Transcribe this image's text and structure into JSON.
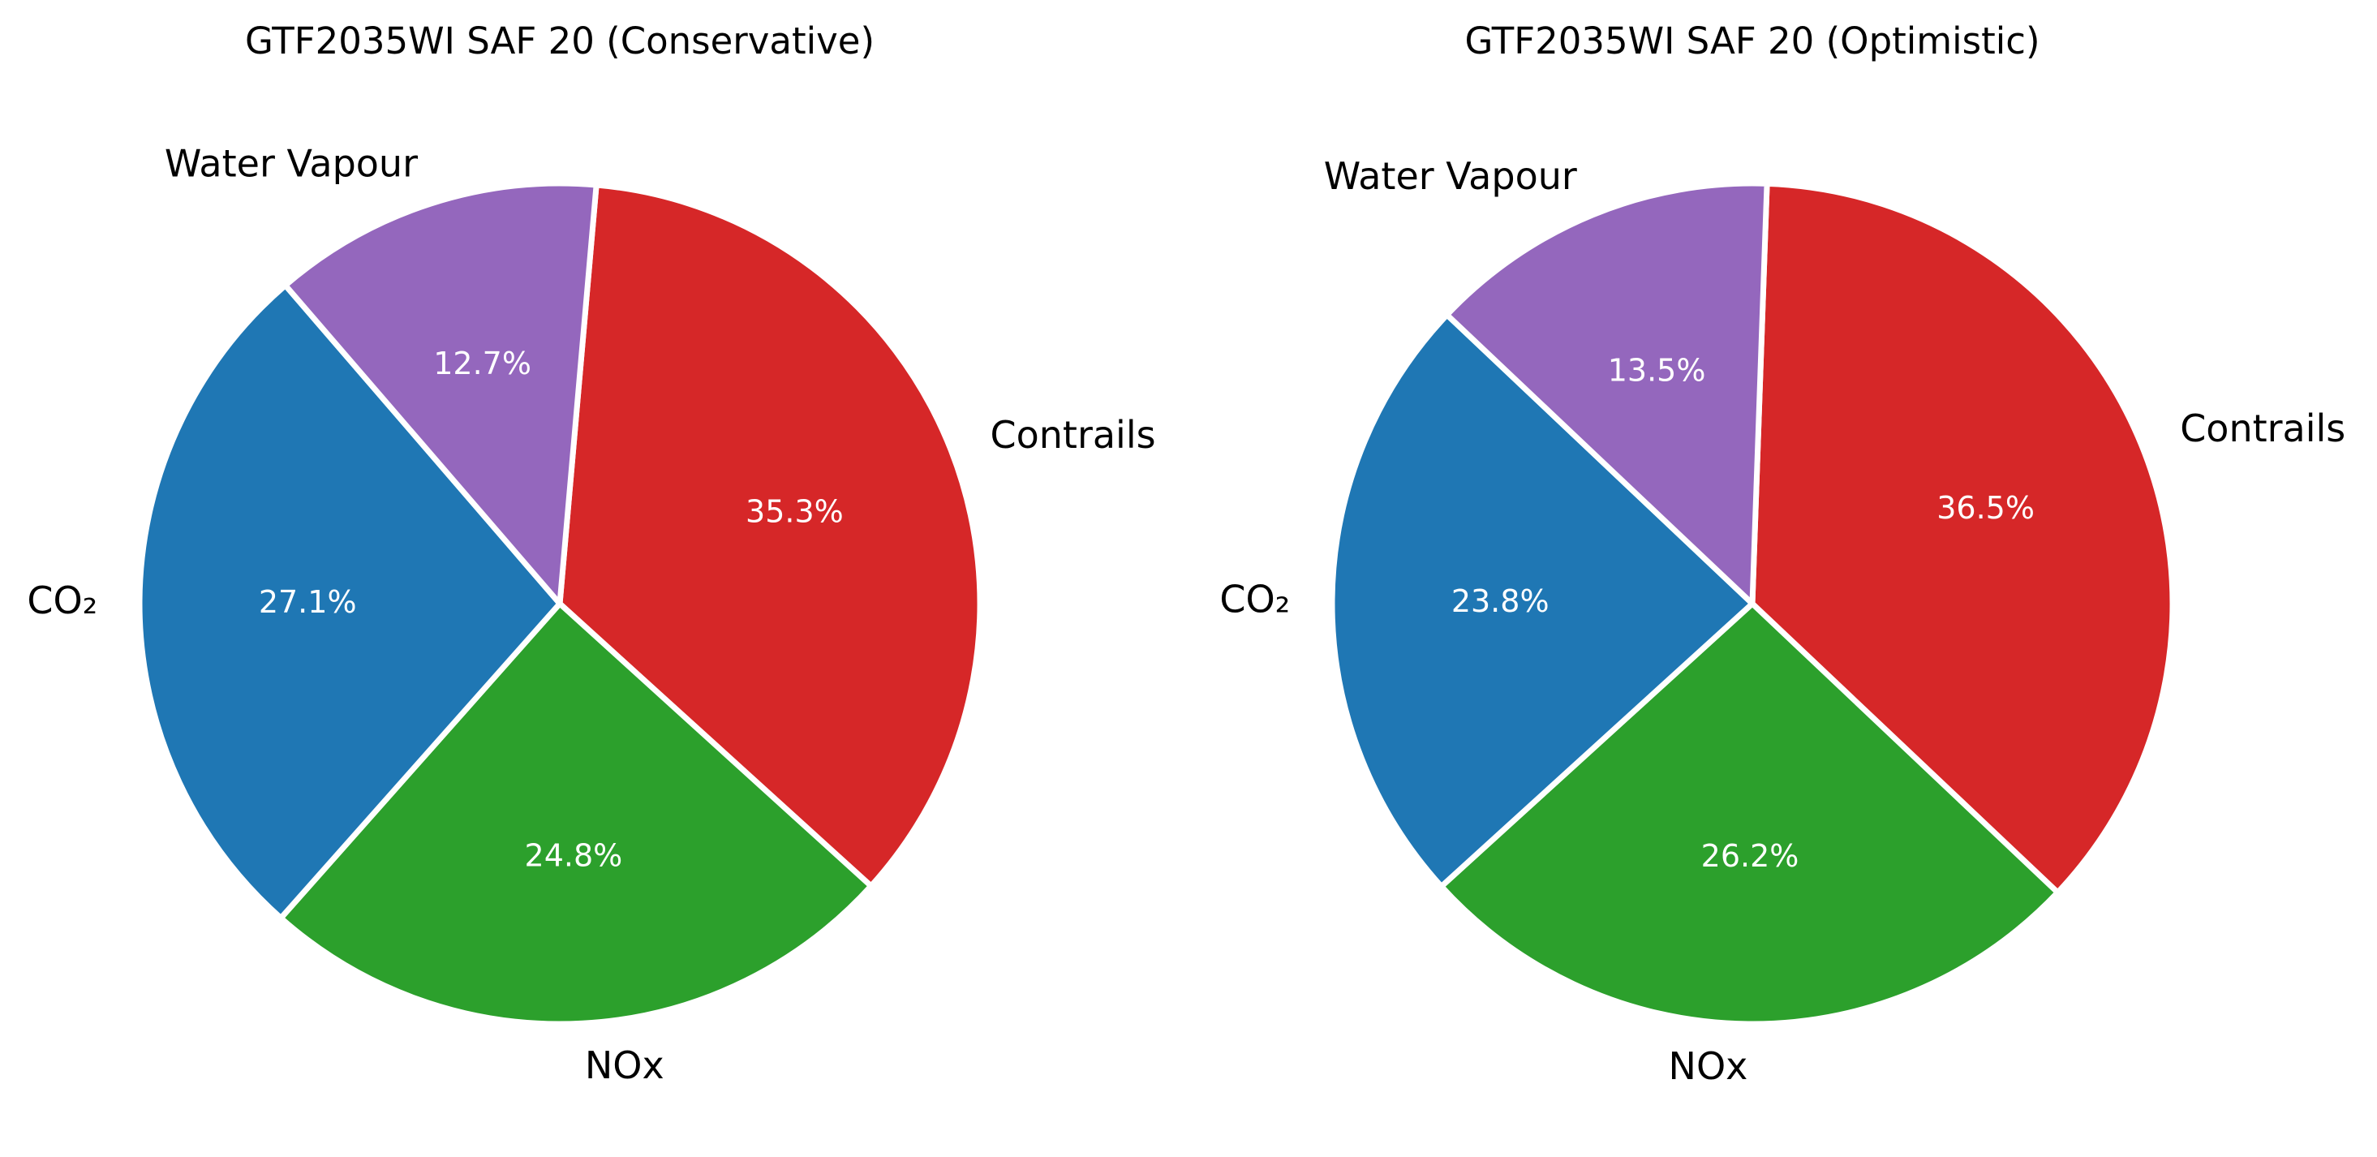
{
  "chart_data": [
    {
      "type": "pie",
      "title": "GTF2035WI SAF 20 (Conservative)",
      "categories": [
        "Contrails",
        "NOx",
        "CO₂",
        "Water Vapour"
      ],
      "values": [
        35.3,
        24.8,
        27.1,
        12.7
      ],
      "value_labels": [
        "35.3%",
        "24.8%",
        "27.1%",
        "12.7%"
      ],
      "colors": [
        "#d62728",
        "#2ca02c",
        "#1f77b4",
        "#9467bd"
      ],
      "start_angle_deg": 85,
      "direction": "clockwise",
      "legend": "none"
    },
    {
      "type": "pie",
      "title": "GTF2035WI SAF 20 (Optimistic)",
      "categories": [
        "Contrails",
        "NOx",
        "CO₂",
        "Water Vapour"
      ],
      "values": [
        36.5,
        26.2,
        23.8,
        13.5
      ],
      "value_labels": [
        "36.5%",
        "26.2%",
        "23.8%",
        "13.5%"
      ],
      "colors": [
        "#d62728",
        "#2ca02c",
        "#1f77b4",
        "#9467bd"
      ],
      "start_angle_deg": 88,
      "direction": "clockwise",
      "legend": "none"
    }
  ]
}
